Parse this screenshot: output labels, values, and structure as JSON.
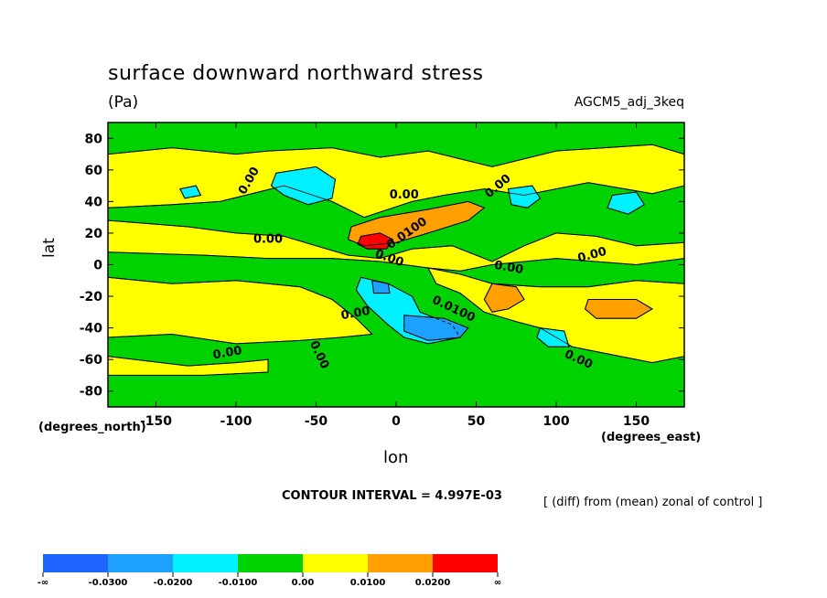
{
  "chart_data": {
    "type": "heatmap",
    "title": "surface downward northward stress",
    "units": "(Pa)",
    "run_label": "AGCM5_adj_3keq",
    "xlabel": "lon",
    "xlabel_units": "(degrees_east)",
    "ylabel": "lat",
    "ylabel_units": "(degrees_north)",
    "xlim": [
      -180,
      180
    ],
    "ylim": [
      -90,
      90
    ],
    "x_ticks": [
      -150,
      -100,
      -50,
      0,
      50,
      100,
      150
    ],
    "y_ticks": [
      80,
      60,
      40,
      20,
      0,
      -20,
      -40,
      -60,
      -80
    ],
    "contour_interval": "CONTOUR INTERVAL = 4.997E-03",
    "note": "[ (diff) from (mean) zonal of control ]",
    "contour_labels": [
      "0.00",
      "0.0100"
    ],
    "colorbar": {
      "labels": [
        "-∞",
        "-0.0300",
        "-0.0200",
        "-0.0100",
        "0.00",
        "0.0100",
        "0.0200",
        "∞"
      ],
      "colors": [
        "#1e64ff",
        "#1ea0ff",
        "#00f0ff",
        "#00d200",
        "#ffff00",
        "#ffa000",
        "#ff0000"
      ]
    },
    "regions": [
      {
        "level": 0.005,
        "polys": [
          [
            [
              -180,
              70
            ],
            [
              -140,
              74
            ],
            [
              -100,
              70
            ],
            [
              -80,
              72
            ],
            [
              -40,
              74
            ],
            [
              -10,
              68
            ],
            [
              20,
              72
            ],
            [
              60,
              62
            ],
            [
              100,
              72
            ],
            [
              160,
              76
            ],
            [
              180,
              70
            ],
            [
              180,
              50
            ],
            [
              160,
              45
            ],
            [
              120,
              52
            ],
            [
              80,
              44
            ],
            [
              55,
              48
            ],
            [
              30,
              44
            ],
            [
              10,
              40
            ],
            [
              -20,
              30
            ],
            [
              -40,
              40
            ],
            [
              -70,
              50
            ],
            [
              -110,
              40
            ],
            [
              -140,
              38
            ],
            [
              -180,
              36
            ]
          ],
          [
            [
              -180,
              28
            ],
            [
              -130,
              24
            ],
            [
              -100,
              20
            ],
            [
              -70,
              18
            ],
            [
              -50,
              12
            ],
            [
              -30,
              6
            ],
            [
              -10,
              4
            ],
            [
              10,
              10
            ],
            [
              35,
              12
            ],
            [
              60,
              2
            ],
            [
              80,
              12
            ],
            [
              100,
              20
            ],
            [
              125,
              18
            ],
            [
              150,
              12
            ],
            [
              180,
              14
            ],
            [
              180,
              4
            ],
            [
              150,
              0
            ],
            [
              100,
              4
            ],
            [
              60,
              0
            ],
            [
              40,
              -4
            ],
            [
              20,
              -2
            ],
            [
              -10,
              2
            ],
            [
              -40,
              4
            ],
            [
              -80,
              4
            ],
            [
              -120,
              6
            ],
            [
              -180,
              8
            ]
          ],
          [
            [
              -180,
              -8
            ],
            [
              -140,
              -12
            ],
            [
              -100,
              -10
            ],
            [
              -60,
              -14
            ],
            [
              -40,
              -22
            ],
            [
              -25,
              -34
            ],
            [
              -15,
              -44
            ],
            [
              -35,
              -46
            ],
            [
              -60,
              -48
            ],
            [
              -100,
              -50
            ],
            [
              -140,
              -44
            ],
            [
              -180,
              -46
            ]
          ],
          [
            [
              20,
              -2
            ],
            [
              40,
              -6
            ],
            [
              60,
              -12
            ],
            [
              90,
              -14
            ],
            [
              120,
              -14
            ],
            [
              150,
              -10
            ],
            [
              180,
              -12
            ],
            [
              180,
              -58
            ],
            [
              160,
              -62
            ],
            [
              140,
              -58
            ],
            [
              110,
              -52
            ],
            [
              90,
              -40
            ],
            [
              75,
              -36
            ],
            [
              55,
              -30
            ],
            [
              40,
              -18
            ],
            [
              25,
              -12
            ]
          ],
          [
            [
              -180,
              -58
            ],
            [
              -130,
              -64
            ],
            [
              -100,
              -62
            ],
            [
              -80,
              -60
            ],
            [
              -80,
              -68
            ],
            [
              -120,
              -70
            ],
            [
              -180,
              -70
            ]
          ]
        ]
      },
      {
        "level": 0.015,
        "polys": [
          [
            [
              -28,
              24
            ],
            [
              -10,
              30
            ],
            [
              20,
              35
            ],
            [
              45,
              40
            ],
            [
              55,
              36
            ],
            [
              45,
              28
            ],
            [
              20,
              20
            ],
            [
              0,
              14
            ],
            [
              -20,
              12
            ],
            [
              -30,
              16
            ]
          ],
          [
            [
              60,
              -12
            ],
            [
              75,
              -14
            ],
            [
              80,
              -22
            ],
            [
              70,
              -28
            ],
            [
              60,
              -30
            ],
            [
              55,
              -22
            ]
          ],
          [
            [
              120,
              -22
            ],
            [
              150,
              -22
            ],
            [
              160,
              -28
            ],
            [
              150,
              -34
            ],
            [
              125,
              -34
            ],
            [
              118,
              -28
            ]
          ]
        ]
      },
      {
        "level": 0.025,
        "polys": [
          [
            [
              -22,
              18
            ],
            [
              -10,
              20
            ],
            [
              -2,
              16
            ],
            [
              -6,
              10
            ],
            [
              -18,
              10
            ],
            [
              -24,
              13
            ]
          ]
        ]
      },
      {
        "level": -0.015,
        "polys": [
          [
            [
              -75,
              58
            ],
            [
              -50,
              62
            ],
            [
              -38,
              54
            ],
            [
              -40,
              42
            ],
            [
              -55,
              38
            ],
            [
              -70,
              44
            ],
            [
              -78,
              50
            ]
          ],
          [
            [
              -135,
              48
            ],
            [
              -125,
              50
            ],
            [
              -122,
              44
            ],
            [
              -132,
              42
            ]
          ],
          [
            [
              70,
              48
            ],
            [
              85,
              50
            ],
            [
              90,
              42
            ],
            [
              82,
              36
            ],
            [
              72,
              38
            ]
          ],
          [
            [
              135,
              44
            ],
            [
              150,
              46
            ],
            [
              155,
              38
            ],
            [
              145,
              32
            ],
            [
              132,
              36
            ]
          ],
          [
            [
              -22,
              -8
            ],
            [
              -5,
              -12
            ],
            [
              10,
              -20
            ],
            [
              15,
              -30
            ],
            [
              35,
              -38
            ],
            [
              40,
              -46
            ],
            [
              20,
              -50
            ],
            [
              5,
              -46
            ],
            [
              -5,
              -38
            ],
            [
              -18,
              -26
            ],
            [
              -25,
              -16
            ]
          ],
          [
            [
              90,
              -40
            ],
            [
              105,
              -42
            ],
            [
              108,
              -52
            ],
            [
              95,
              -52
            ],
            [
              88,
              -46
            ]
          ]
        ]
      },
      {
        "level": -0.025,
        "polys": [
          [
            [
              5,
              -32
            ],
            [
              30,
              -34
            ],
            [
              45,
              -40
            ],
            [
              40,
              -46
            ],
            [
              20,
              -48
            ],
            [
              5,
              -42
            ]
          ],
          [
            [
              -15,
              -10
            ],
            [
              -5,
              -12
            ],
            [
              -4,
              -18
            ],
            [
              -14,
              -18
            ]
          ]
        ]
      }
    ]
  }
}
